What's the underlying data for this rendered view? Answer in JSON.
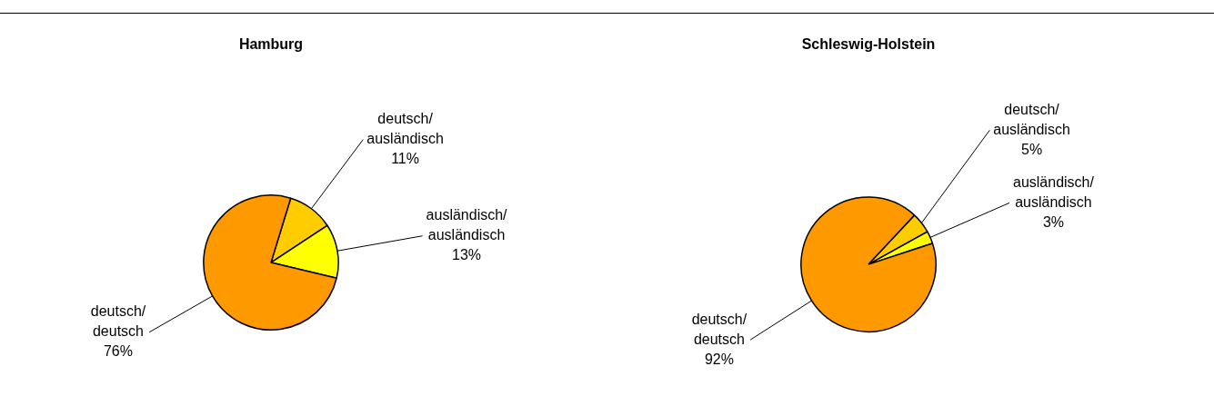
{
  "chart_data": [
    {
      "type": "pie",
      "title": "Hamburg",
      "categories": [
        "deutsch/ausländisch",
        "ausländisch/ausländisch",
        "deutsch/deutsch"
      ],
      "values": [
        11,
        13,
        76
      ],
      "value_labels": [
        "11%",
        "13%",
        "76%"
      ],
      "colors": [
        "#ffcc00",
        "#ffff00",
        "#ff9900"
      ]
    },
    {
      "type": "pie",
      "title": "Schleswig-Holstein",
      "categories": [
        "deutsch/ausländisch",
        "ausländisch/ausländisch",
        "deutsch/deutsch"
      ],
      "values": [
        5,
        3,
        92
      ],
      "value_labels": [
        "5%",
        "3%",
        "92%"
      ],
      "colors": [
        "#ffcc00",
        "#ffff00",
        "#ff9900"
      ]
    }
  ]
}
